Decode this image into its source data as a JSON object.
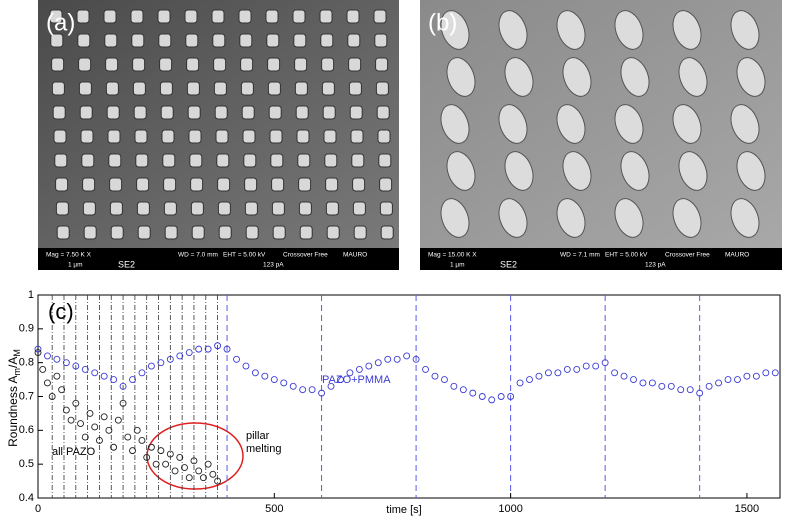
{
  "panels": [
    {
      "label": "(a)",
      "info": [
        "Mag =  7.50 K X",
        "SE2",
        "WD =  7.0 mm",
        "EHT =  5.00 kV",
        "Crossover Free",
        "MAURO",
        "1 µm",
        "123 pA"
      ]
    },
    {
      "label": "(b)",
      "info": [
        "Mag =  15.00 K X",
        "SE2",
        "WD =  7.1 mm",
        "EHT =  5.00 kV",
        "Crossover Free",
        "MAURO",
        "1 µm",
        "123 pA"
      ]
    }
  ],
  "chart_data": {
    "type": "scatter",
    "label": "(c)",
    "xlabel": "time [s]",
    "ylabel": [
      "Roundness A",
      "m",
      "/A",
      "M"
    ],
    "xlim": [
      0,
      1570
    ],
    "ylim": [
      0.4,
      1
    ],
    "xticks": [
      0,
      500,
      1000,
      1500
    ],
    "yticks": [
      0.4,
      0.5,
      0.6,
      0.7,
      0.8,
      0.9,
      1
    ],
    "annotations": [
      "all PAZO",
      "pillar",
      "melting",
      "PAZO+PMMA"
    ],
    "dashdot_lines": {
      "color": "#333333",
      "values": [
        30,
        55,
        80,
        105,
        130,
        155,
        180,
        205,
        230,
        255,
        280,
        305,
        330,
        355,
        380
      ]
    },
    "dashed_lines": {
      "color": "#5a5aeb",
      "values": [
        400,
        600,
        800,
        1000,
        1200,
        1400
      ]
    },
    "series": [
      {
        "name": "PAZO+PMMA",
        "color": "#3b3bd6",
        "x": [
          0,
          20,
          40,
          60,
          80,
          100,
          120,
          140,
          160,
          180,
          200,
          220,
          240,
          260,
          280,
          300,
          320,
          340,
          360,
          380,
          400,
          420,
          440,
          460,
          480,
          500,
          520,
          540,
          560,
          580,
          600,
          620,
          640,
          660,
          680,
          700,
          720,
          740,
          760,
          780,
          800,
          820,
          840,
          860,
          880,
          900,
          920,
          940,
          960,
          980,
          1000,
          1020,
          1040,
          1060,
          1080,
          1100,
          1120,
          1140,
          1160,
          1180,
          1200,
          1220,
          1240,
          1260,
          1280,
          1300,
          1320,
          1340,
          1360,
          1380,
          1400,
          1420,
          1440,
          1460,
          1480,
          1500,
          1520,
          1540,
          1560
        ],
        "values": [
          0.84,
          0.82,
          0.81,
          0.8,
          0.79,
          0.78,
          0.77,
          0.76,
          0.75,
          0.73,
          0.75,
          0.77,
          0.79,
          0.8,
          0.81,
          0.82,
          0.83,
          0.84,
          0.84,
          0.85,
          0.84,
          0.81,
          0.79,
          0.77,
          0.76,
          0.75,
          0.74,
          0.73,
          0.72,
          0.72,
          0.71,
          0.73,
          0.75,
          0.77,
          0.78,
          0.79,
          0.8,
          0.81,
          0.81,
          0.82,
          0.81,
          0.78,
          0.76,
          0.75,
          0.73,
          0.72,
          0.71,
          0.7,
          0.69,
          0.7,
          0.7,
          0.74,
          0.75,
          0.76,
          0.77,
          0.77,
          0.78,
          0.78,
          0.79,
          0.79,
          0.8,
          0.77,
          0.76,
          0.75,
          0.74,
          0.74,
          0.73,
          0.73,
          0.72,
          0.72,
          0.71,
          0.73,
          0.74,
          0.75,
          0.75,
          0.76,
          0.76,
          0.77,
          0.77
        ]
      },
      {
        "name": "all PAZO",
        "color": "#222222",
        "x": [
          0,
          10,
          20,
          30,
          40,
          50,
          60,
          70,
          80,
          90,
          100,
          110,
          120,
          130,
          140,
          150,
          160,
          170,
          180,
          190,
          200,
          210,
          220,
          230,
          240,
          250,
          260,
          270,
          280,
          290,
          300,
          310,
          320,
          330,
          340,
          350,
          360,
          370,
          380
        ],
        "values": [
          0.83,
          0.78,
          0.74,
          0.7,
          0.76,
          0.72,
          0.66,
          0.63,
          0.68,
          0.62,
          0.58,
          0.65,
          0.61,
          0.57,
          0.64,
          0.6,
          0.55,
          0.63,
          0.68,
          0.58,
          0.54,
          0.6,
          0.57,
          0.52,
          0.55,
          0.5,
          0.54,
          0.5,
          0.53,
          0.48,
          0.52,
          0.49,
          0.46,
          0.51,
          0.48,
          0.46,
          0.5,
          0.47,
          0.45
        ]
      }
    ]
  }
}
